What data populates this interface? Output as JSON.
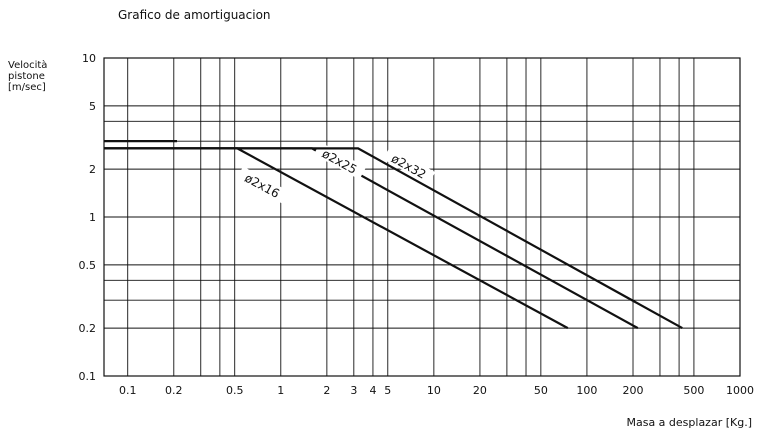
{
  "chart_data": {
    "type": "line",
    "title": "Grafico de amortiguacion",
    "ylabel": [
      "Velocità",
      "pistone",
      "[m/sec]"
    ],
    "xlabel": "Masa a desplazar [Kg.]",
    "xscale": "log",
    "yscale": "log",
    "xlim": [
      0.07,
      1000
    ],
    "ylim": [
      0.1,
      10
    ],
    "x_ticks": [
      0.1,
      0.2,
      0.5,
      1,
      2,
      3,
      4,
      5,
      10,
      20,
      50,
      100,
      200,
      500,
      1000
    ],
    "x_tick_labels": [
      "0.1",
      "0.2",
      "0.5",
      "1",
      "2",
      "3",
      "4",
      "5",
      "10",
      "20",
      "50",
      "100",
      "200",
      "500",
      "1000"
    ],
    "y_ticks": [
      0.1,
      0.2,
      0.5,
      1,
      2,
      5,
      10
    ],
    "y_tick_labels": [
      "0.1",
      "0.2",
      "0.5",
      "1",
      "2",
      "5",
      "10"
    ],
    "x_gridlines": [
      0.1,
      0.2,
      0.3,
      0.4,
      0.5,
      1,
      2,
      3,
      4,
      5,
      10,
      20,
      30,
      40,
      50,
      100,
      200,
      300,
      400,
      500
    ],
    "y_gridlines": [
      0.1,
      0.2,
      0.3,
      0.4,
      0.5,
      1,
      2,
      3,
      4,
      5,
      10
    ],
    "grid": true,
    "series": [
      {
        "name": "ø2x16",
        "points": [
          [
            0.07,
            2.7
          ],
          [
            0.52,
            2.7
          ],
          [
            75,
            0.2
          ]
        ],
        "label_at": [
          0.75,
          1.55
        ]
      },
      {
        "name": "ø2x25",
        "points": [
          [
            0.07,
            2.7
          ],
          [
            1.6,
            2.7
          ],
          [
            215,
            0.2
          ]
        ],
        "label_at": [
          2.4,
          2.2
        ]
      },
      {
        "name": "ø2x32",
        "points": [
          [
            0.07,
            2.7
          ],
          [
            3.2,
            2.7
          ],
          [
            420,
            0.2
          ]
        ],
        "label_at": [
          6.8,
          2.05
        ]
      },
      {
        "name": "",
        "points": [
          [
            0.07,
            3.0
          ],
          [
            0.21,
            3.0
          ]
        ]
      }
    ]
  }
}
